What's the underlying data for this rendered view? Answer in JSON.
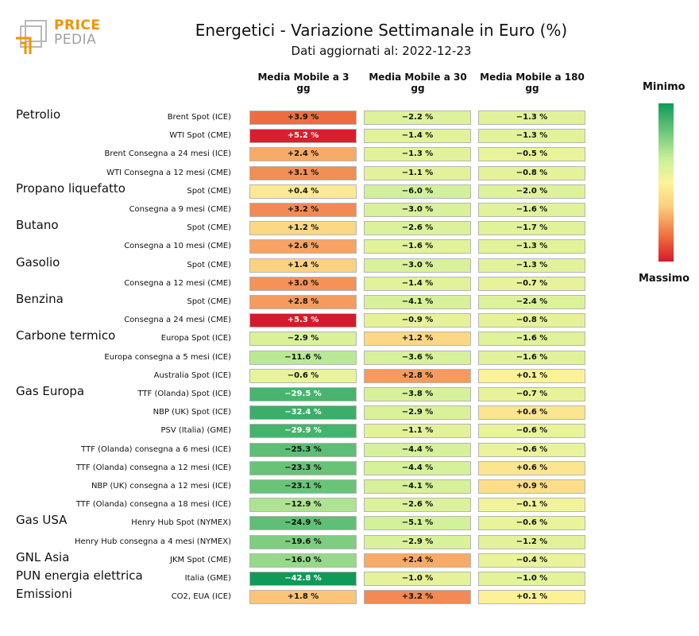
{
  "logo": {
    "line1": "PRICE",
    "line2": "PEDIA"
  },
  "chart_data": {
    "type": "table",
    "title": "Energetici - Variazione Settimanale in Euro (%)",
    "subtitle": "Dati aggiornati al: 2022-12-23",
    "columns": [
      "Media Mobile a 3 gg",
      "Media Mobile a 30 gg",
      "Media Mobile a 180 gg"
    ],
    "legend": {
      "top": "Minimo",
      "bottom": "Massimo"
    },
    "groups": [
      {
        "name": "Petrolio",
        "rows": [
          {
            "label": "Brent Spot (ICE)",
            "values": [
              3.9,
              -2.2,
              -1.3
            ]
          },
          {
            "label": "WTI Spot (CME)",
            "values": [
              5.2,
              -1.4,
              -1.3
            ]
          },
          {
            "label": "Brent Consegna a 24 mesi (ICE)",
            "values": [
              2.4,
              -1.3,
              -0.5
            ]
          },
          {
            "label": "WTI Consegna a 12 mesi (CME)",
            "values": [
              3.1,
              -1.1,
              -0.8
            ]
          }
        ]
      },
      {
        "name": "Propano liquefatto",
        "rows": [
          {
            "label": "Spot (CME)",
            "values": [
              0.4,
              -6.0,
              -2.0
            ]
          },
          {
            "label": "Consegna a 9 mesi (CME)",
            "values": [
              3.2,
              -3.0,
              -1.6
            ]
          }
        ]
      },
      {
        "name": "Butano",
        "rows": [
          {
            "label": "Spot (CME)",
            "values": [
              1.2,
              -2.6,
              -1.7
            ]
          },
          {
            "label": "Consegna a 10 mesi (CME)",
            "values": [
              2.6,
              -1.6,
              -1.3
            ]
          }
        ]
      },
      {
        "name": "Gasolio",
        "rows": [
          {
            "label": "Spot (CME)",
            "values": [
              1.4,
              -3.0,
              -1.3
            ]
          },
          {
            "label": "Consegna a 12 mesi (CME)",
            "values": [
              3.0,
              -1.4,
              -0.7
            ]
          }
        ]
      },
      {
        "name": "Benzina",
        "rows": [
          {
            "label": "Spot (CME)",
            "values": [
              2.8,
              -4.1,
              -2.4
            ]
          },
          {
            "label": "Consegna a 24 mesi (CME)",
            "values": [
              5.3,
              -0.9,
              -0.8
            ]
          }
        ]
      },
      {
        "name": "Carbone termico",
        "rows": [
          {
            "label": "Europa Spot (ICE)",
            "values": [
              -2.9,
              1.2,
              -1.6
            ]
          },
          {
            "label": "Europa consegna a 5 mesi (ICE)",
            "values": [
              -11.6,
              -3.6,
              -1.6
            ]
          },
          {
            "label": "Australia Spot (ICE)",
            "values": [
              -0.6,
              2.8,
              0.1
            ]
          }
        ]
      },
      {
        "name": "Gas Europa",
        "rows": [
          {
            "label": "TTF (Olanda) Spot (ICE)",
            "values": [
              -29.5,
              -3.8,
              -0.7
            ]
          },
          {
            "label": "NBP (UK) Spot (ICE)",
            "values": [
              -32.4,
              -2.9,
              0.6
            ]
          },
          {
            "label": "PSV (Italia) (GME)",
            "values": [
              -29.9,
              -1.1,
              -0.6
            ]
          },
          {
            "label": "TTF (Olanda) consegna a 6 mesi (ICE)",
            "values": [
              -25.3,
              -4.4,
              -0.6
            ]
          },
          {
            "label": "TTF (Olanda) consegna a 12 mesi (ICE)",
            "values": [
              -23.3,
              -4.4,
              0.6
            ]
          },
          {
            "label": "NBP (UK) consegna a 12 mesi (ICE)",
            "values": [
              -23.1,
              -4.1,
              0.9
            ]
          },
          {
            "label": "TTF (Olanda) consegna a 18 mesi (ICE)",
            "values": [
              -12.9,
              -2.6,
              -0.1
            ]
          }
        ]
      },
      {
        "name": "Gas USA",
        "rows": [
          {
            "label": "Henry Hub Spot (NYMEX)",
            "values": [
              -24.9,
              -5.1,
              -0.6
            ]
          },
          {
            "label": "Henry Hub consegna a 4 mesi (NYMEX)",
            "values": [
              -19.6,
              -2.9,
              -1.2
            ]
          }
        ]
      },
      {
        "name": "GNL Asia",
        "rows": [
          {
            "label": "JKM Spot (CME)",
            "values": [
              -16.0,
              2.4,
              -0.4
            ]
          }
        ]
      },
      {
        "name": "PUN energia elettrica",
        "rows": [
          {
            "label": "Italia (GME)",
            "values": [
              -42.8,
              -1.0,
              -1.0
            ]
          }
        ]
      },
      {
        "name": "Emissioni",
        "rows": [
          {
            "label": "CO2, EUA (ICE)",
            "values": [
              1.8,
              3.2,
              0.1
            ]
          }
        ]
      }
    ]
  }
}
